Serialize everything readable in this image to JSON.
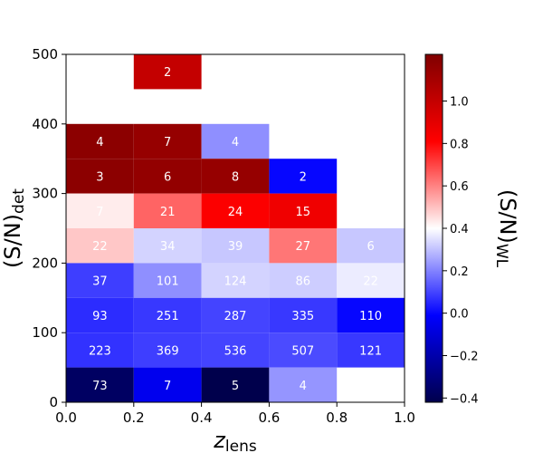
{
  "chart_data": {
    "type": "heatmap",
    "xlabel_main": "z",
    "xlabel_sub": "lens",
    "ylabel_main": "(S/N)",
    "ylabel_sub": "det",
    "colorbar_label_main": "(S/N)",
    "colorbar_label_sub": "WL",
    "xlim": [
      0.0,
      1.0
    ],
    "ylim": [
      0,
      500
    ],
    "x_ticks": [
      0.0,
      0.2,
      0.4,
      0.6,
      0.8,
      1.0
    ],
    "x_tick_labels": [
      "0.0",
      "0.2",
      "0.4",
      "0.6",
      "0.8",
      "1.0"
    ],
    "y_ticks": [
      0,
      100,
      200,
      300,
      400,
      500
    ],
    "y_tick_labels": [
      "0",
      "100",
      "200",
      "300",
      "400",
      "500"
    ],
    "colorbar_range": [
      -0.42,
      1.22
    ],
    "colorbar_ticks": [
      -0.4,
      -0.2,
      0.0,
      0.2,
      0.4,
      0.6,
      0.8,
      1.0
    ],
    "colorbar_tick_labels": [
      "−0.4",
      "−0.2",
      "0.0",
      "0.2",
      "0.4",
      "0.6",
      "0.8",
      "1.0"
    ],
    "colormap": "seismic",
    "cells": [
      {
        "x0": 0.2,
        "x1": 0.4,
        "y0": 450,
        "y1": 500,
        "count": "2",
        "value": 1.0
      },
      {
        "x0": 0.0,
        "x1": 0.2,
        "y0": 350,
        "y1": 400,
        "count": "4",
        "value": 1.18
      },
      {
        "x0": 0.2,
        "x1": 0.4,
        "y0": 350,
        "y1": 400,
        "count": "7",
        "value": 1.15
      },
      {
        "x0": 0.4,
        "x1": 0.6,
        "y0": 350,
        "y1": 400,
        "count": "4",
        "value": 0.22
      },
      {
        "x0": 0.0,
        "x1": 0.2,
        "y0": 300,
        "y1": 350,
        "count": "3",
        "value": 1.18
      },
      {
        "x0": 0.2,
        "x1": 0.4,
        "y0": 300,
        "y1": 350,
        "count": "6",
        "value": 1.16
      },
      {
        "x0": 0.4,
        "x1": 0.6,
        "y0": 300,
        "y1": 350,
        "count": "8",
        "value": 1.15
      },
      {
        "x0": 0.6,
        "x1": 0.8,
        "y0": 300,
        "y1": 350,
        "count": "2",
        "value": 0.0
      },
      {
        "x0": 0.0,
        "x1": 0.2,
        "y0": 250,
        "y1": 300,
        "count": "7",
        "value": 0.43
      },
      {
        "x0": 0.2,
        "x1": 0.4,
        "y0": 250,
        "y1": 300,
        "count": "21",
        "value": 0.65
      },
      {
        "x0": 0.4,
        "x1": 0.6,
        "y0": 250,
        "y1": 300,
        "count": "24",
        "value": 0.82
      },
      {
        "x0": 0.6,
        "x1": 0.8,
        "y0": 250,
        "y1": 300,
        "count": "15",
        "value": 0.86
      },
      {
        "x0": 0.0,
        "x1": 0.2,
        "y0": 200,
        "y1": 250,
        "count": "22",
        "value": 0.49
      },
      {
        "x0": 0.2,
        "x1": 0.4,
        "y0": 200,
        "y1": 250,
        "count": "34",
        "value": 0.33
      },
      {
        "x0": 0.4,
        "x1": 0.6,
        "y0": 200,
        "y1": 250,
        "count": "39",
        "value": 0.31
      },
      {
        "x0": 0.6,
        "x1": 0.8,
        "y0": 200,
        "y1": 250,
        "count": "27",
        "value": 0.62
      },
      {
        "x0": 0.8,
        "x1": 1.0,
        "y0": 200,
        "y1": 250,
        "count": "6",
        "value": 0.31
      },
      {
        "x0": 0.0,
        "x1": 0.2,
        "y0": 150,
        "y1": 200,
        "count": "37",
        "value": 0.09
      },
      {
        "x0": 0.2,
        "x1": 0.4,
        "y0": 150,
        "y1": 200,
        "count": "101",
        "value": 0.22
      },
      {
        "x0": 0.4,
        "x1": 0.6,
        "y0": 150,
        "y1": 200,
        "count": "124",
        "value": 0.33
      },
      {
        "x0": 0.6,
        "x1": 0.8,
        "y0": 150,
        "y1": 200,
        "count": "86",
        "value": 0.32
      },
      {
        "x0": 0.8,
        "x1": 1.0,
        "y0": 150,
        "y1": 200,
        "count": "22",
        "value": 0.37
      },
      {
        "x0": 0.0,
        "x1": 0.2,
        "y0": 100,
        "y1": 150,
        "count": "93",
        "value": 0.06
      },
      {
        "x0": 0.2,
        "x1": 0.4,
        "y0": 100,
        "y1": 150,
        "count": "251",
        "value": 0.08
      },
      {
        "x0": 0.4,
        "x1": 0.6,
        "y0": 100,
        "y1": 150,
        "count": "287",
        "value": 0.1
      },
      {
        "x0": 0.6,
        "x1": 0.8,
        "y0": 100,
        "y1": 150,
        "count": "335",
        "value": 0.08
      },
      {
        "x0": 0.8,
        "x1": 1.0,
        "y0": 100,
        "y1": 150,
        "count": "110",
        "value": 0.0
      },
      {
        "x0": 0.0,
        "x1": 0.2,
        "y0": 50,
        "y1": 100,
        "count": "223",
        "value": 0.07
      },
      {
        "x0": 0.2,
        "x1": 0.4,
        "y0": 50,
        "y1": 100,
        "count": "369",
        "value": 0.09
      },
      {
        "x0": 0.4,
        "x1": 0.6,
        "y0": 50,
        "y1": 100,
        "count": "536",
        "value": 0.1
      },
      {
        "x0": 0.6,
        "x1": 0.8,
        "y0": 50,
        "y1": 100,
        "count": "507",
        "value": 0.11
      },
      {
        "x0": 0.8,
        "x1": 1.0,
        "y0": 50,
        "y1": 100,
        "count": "121",
        "value": 0.08
      },
      {
        "x0": 0.0,
        "x1": 0.2,
        "y0": 0,
        "y1": 50,
        "count": "73",
        "value": -0.37
      },
      {
        "x0": 0.2,
        "x1": 0.4,
        "y0": 0,
        "y1": 50,
        "count": "7",
        "value": -0.05
      },
      {
        "x0": 0.4,
        "x1": 0.6,
        "y0": 0,
        "y1": 50,
        "count": "5",
        "value": -0.42
      },
      {
        "x0": 0.6,
        "x1": 0.8,
        "y0": 0,
        "y1": 50,
        "count": "4",
        "value": 0.23
      }
    ]
  }
}
